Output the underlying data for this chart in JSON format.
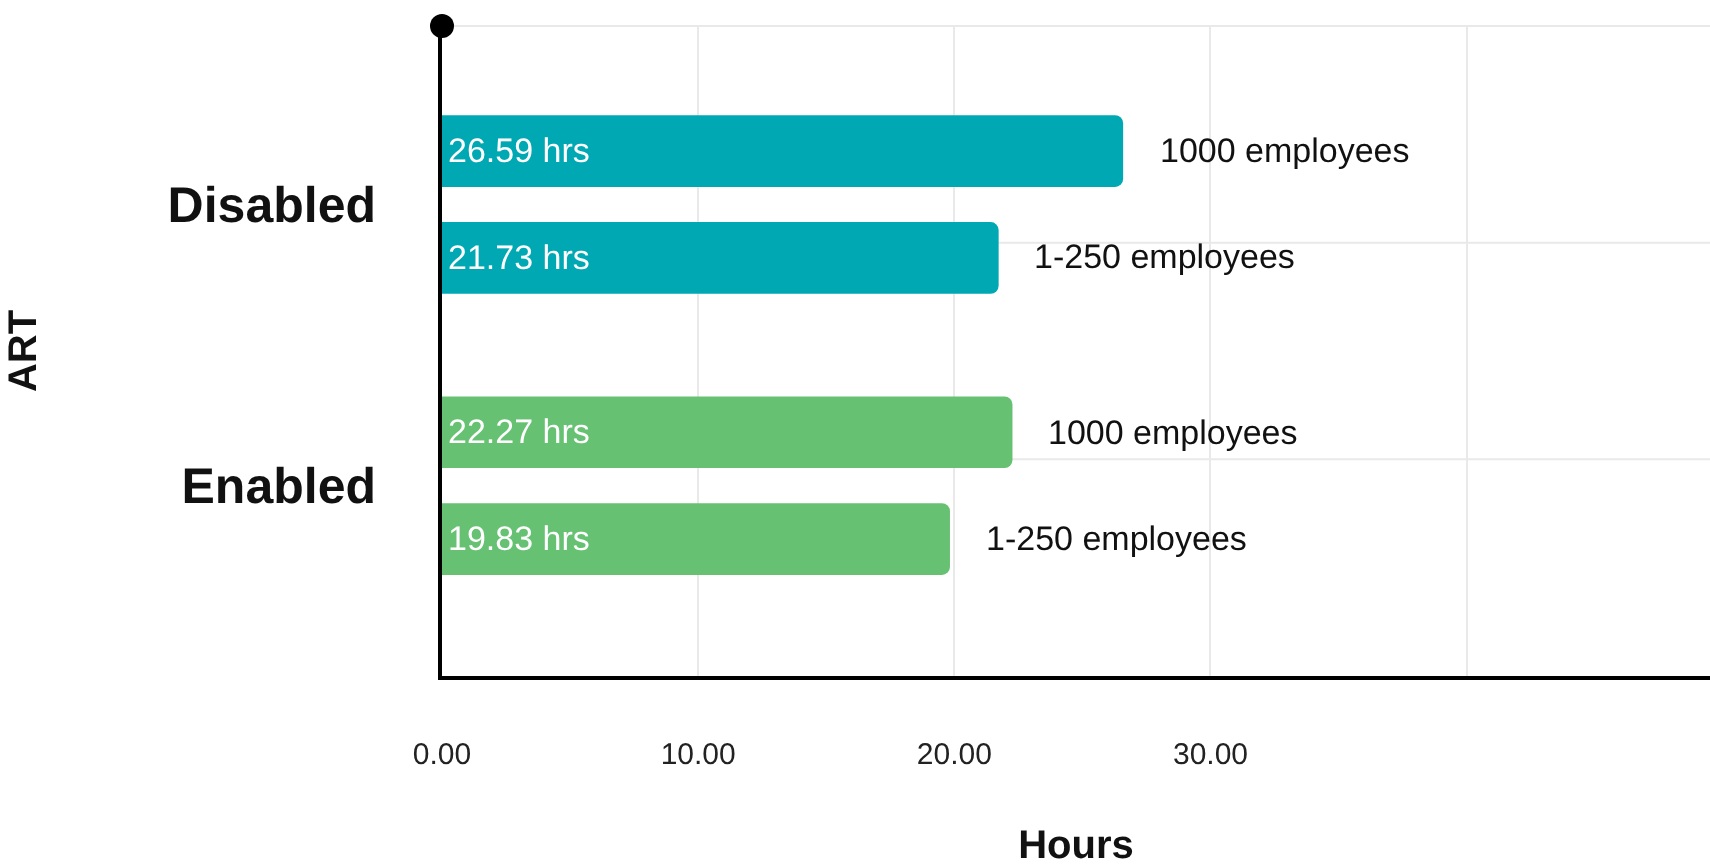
{
  "chart_data": {
    "type": "bar",
    "orientation": "horizontal",
    "xlabel": "Hours",
    "ylabel": "ART",
    "categories": [
      "Disabled",
      "Enabled"
    ],
    "series": [
      {
        "name": "1000 employees",
        "colors": [
          "#00a8b4",
          "#66c172"
        ],
        "values": [
          26.59,
          22.27
        ],
        "value_labels": [
          "26.59 hrs",
          "22.27 hrs"
        ]
      },
      {
        "name": "1-250 employees",
        "colors": [
          "#00a8b4",
          "#66c172"
        ],
        "values": [
          21.73,
          19.83
        ],
        "value_labels": [
          "21.73 hrs",
          "19.83 hrs"
        ]
      }
    ],
    "xlim": [
      0,
      49.5
    ],
    "xticks": [
      {
        "value": 0,
        "label": "0.00"
      },
      {
        "value": 10,
        "label": "10.00"
      },
      {
        "value": 20,
        "label": "20.00"
      },
      {
        "value": 30,
        "label": "30.00"
      },
      {
        "value": 40,
        "label": null
      }
    ],
    "grid": true
  }
}
